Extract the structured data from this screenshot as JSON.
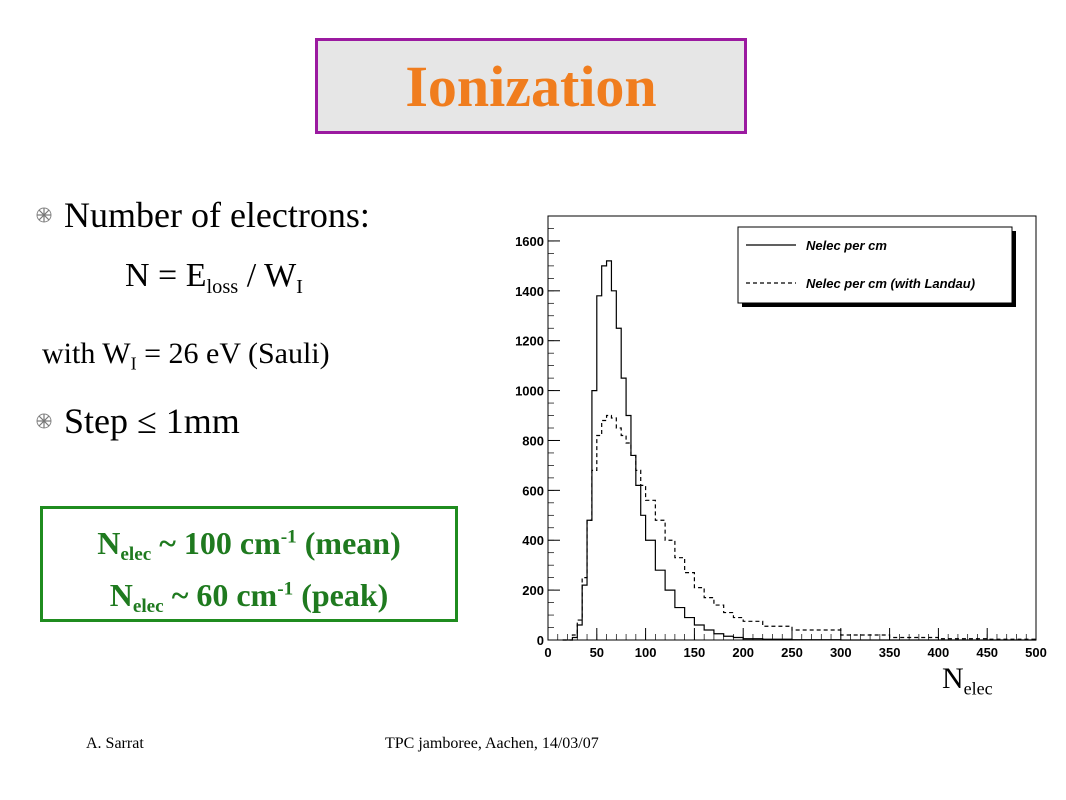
{
  "title": "Ionization",
  "bullets": {
    "b1": "Number of electrons:",
    "b2": "Step ≤ 1mm"
  },
  "formula": {
    "lhs": "N = E",
    "loss_sub": "loss",
    "mid": " / W",
    "i_sub": "I"
  },
  "with_line": {
    "prefix": "with W",
    "i_sub": "I",
    "suffix": " = 26 eV (Sauli)"
  },
  "result": {
    "line1": {
      "n": "N",
      "sub": "elec",
      "mid": " ~ 100 cm",
      "sup": "-1",
      "tail": " (mean)"
    },
    "line2": {
      "n": "N",
      "sub": "elec",
      "mid": " ~ 60 cm",
      "sup": "-1",
      "tail": " (peak)"
    }
  },
  "axis_label": {
    "n": "N",
    "sub": "elec"
  },
  "footer": {
    "author": "A. Sarrat",
    "event": "TPC jamboree, Aachen, 14/03/07"
  },
  "colors": {
    "title": "#f07d1e",
    "title_border": "#9b1aa0",
    "result": "#1f7a1f",
    "result_border": "#1f8c1f"
  },
  "chart_data": {
    "type": "line",
    "xlim": [
      0,
      500
    ],
    "ylim": [
      0,
      1700
    ],
    "xticks": [
      0,
      50,
      100,
      150,
      200,
      250,
      300,
      350,
      400,
      450,
      500
    ],
    "yticks": [
      0,
      200,
      400,
      600,
      800,
      1000,
      1200,
      1400,
      1600
    ],
    "legend_position": "top-right",
    "series": [
      {
        "name": "Nelec per cm",
        "style": "solid",
        "x": [
          15,
          20,
          25,
          30,
          35,
          40,
          45,
          50,
          55,
          60,
          65,
          70,
          75,
          80,
          85,
          90,
          95,
          100,
          110,
          120,
          130,
          140,
          150,
          160,
          170,
          180,
          190,
          200,
          220,
          250,
          300,
          350,
          400,
          450,
          500
        ],
        "y": [
          0,
          0,
          10,
          60,
          220,
          480,
          1000,
          1380,
          1500,
          1520,
          1400,
          1250,
          1050,
          900,
          740,
          620,
          500,
          400,
          280,
          200,
          130,
          90,
          60,
          40,
          25,
          15,
          10,
          5,
          3,
          1,
          0,
          0,
          0,
          0,
          0
        ]
      },
      {
        "name": "Nelec per cm (with Landau)",
        "style": "dashed",
        "x": [
          15,
          20,
          25,
          30,
          35,
          40,
          45,
          50,
          55,
          60,
          65,
          70,
          75,
          80,
          85,
          90,
          95,
          100,
          110,
          120,
          130,
          140,
          150,
          160,
          170,
          180,
          190,
          200,
          220,
          250,
          300,
          350,
          400,
          450,
          500
        ],
        "y": [
          0,
          0,
          20,
          80,
          250,
          480,
          680,
          820,
          880,
          900,
          890,
          850,
          820,
          790,
          740,
          680,
          620,
          560,
          480,
          400,
          330,
          270,
          210,
          170,
          140,
          110,
          90,
          75,
          55,
          40,
          20,
          10,
          5,
          3,
          2
        ]
      }
    ]
  }
}
